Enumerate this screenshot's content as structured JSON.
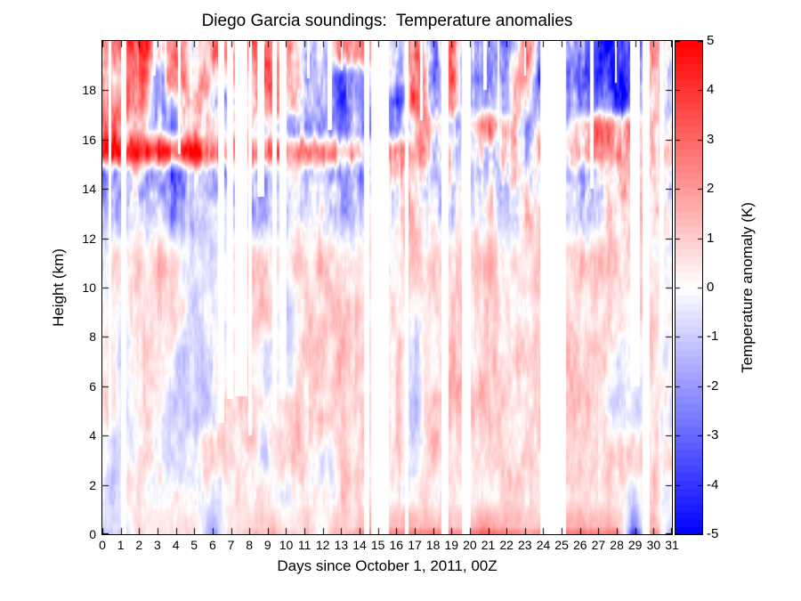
{
  "title": "Diego Garcia soundings:  Temperature anomalies",
  "background_color": "#ffffff",
  "chart_data": {
    "type": "heatmap",
    "title": "Diego Garcia soundings:  Temperature anomalies",
    "xlabel": "Days since October 1, 2011, 00Z",
    "ylabel": "Height (km)",
    "x_range": [
      0,
      31
    ],
    "y_range": [
      0,
      20
    ],
    "x_ticks": [
      0,
      1,
      2,
      3,
      4,
      5,
      6,
      7,
      8,
      9,
      10,
      11,
      12,
      13,
      14,
      15,
      16,
      17,
      18,
      19,
      20,
      21,
      22,
      23,
      24,
      25,
      26,
      27,
      28,
      29,
      30,
      31
    ],
    "y_ticks": [
      0,
      2,
      4,
      6,
      8,
      10,
      12,
      14,
      16,
      18
    ],
    "grid_on": false,
    "colorbar": {
      "label": "Temperature anomaly (K)",
      "min": -5,
      "max": 5,
      "ticks": [
        5,
        4,
        3,
        2,
        1,
        0,
        -1,
        -2,
        -3,
        -4,
        -5
      ],
      "levels": 64,
      "color_positive": "#ff0000",
      "color_zero": "#ffffff",
      "color_negative": "#0000ff"
    },
    "grid": {
      "days": [
        0,
        1,
        2,
        3,
        4,
        5,
        6,
        7,
        8,
        9,
        10,
        11,
        12,
        13,
        14,
        15,
        16,
        17,
        18,
        19,
        20,
        21,
        22,
        23,
        24,
        25,
        26,
        27,
        28,
        29,
        30,
        31
      ],
      "heights": [
        0,
        0.4,
        1.5,
        3,
        5,
        7,
        9,
        11,
        13,
        14.5,
        15.5,
        16.5,
        17.5,
        18.5,
        19.5
      ],
      "values": [
        [
          -1.0,
          -0.5,
          0.5,
          0.3,
          0.5,
          0.3,
          -1.5,
          0.8,
          1.2,
          1.2,
          1.0,
          1.0,
          0.3,
          1.2,
          2.2,
          2.5,
          2.5,
          2.4,
          2.4,
          2.5,
          2.6,
          2.5,
          2.6,
          2.5,
          2.3,
          2.5,
          2.6,
          2.6,
          2.5,
          -3.5,
          2.5,
          -1.5
        ],
        [
          -0.6,
          -0.3,
          0.4,
          0.2,
          0.3,
          0.2,
          -1.0,
          0.5,
          0.8,
          0.8,
          0.6,
          0.7,
          0.2,
          0.8,
          1.2,
          1.4,
          1.4,
          1.3,
          1.3,
          1.4,
          1.5,
          1.4,
          1.5,
          1.4,
          1.2,
          1.4,
          1.5,
          1.5,
          1.4,
          -2.0,
          1.4,
          -0.8
        ],
        [
          -0.4,
          -0.2,
          0.4,
          -0.3,
          0.3,
          -0.4,
          -0.6,
          0.4,
          0.5,
          0.4,
          -0.2,
          0.4,
          0.4,
          0.6,
          0.6,
          0.5,
          0.7,
          0.5,
          0.4,
          0.6,
          0.8,
          0.6,
          0.7,
          0.6,
          0.5,
          0.7,
          0.6,
          0.6,
          0.4,
          -1.0,
          0.5,
          -0.4
        ],
        [
          0.3,
          -0.5,
          0.6,
          0.4,
          -0.6,
          -0.4,
          0.5,
          0.8,
          0.6,
          -0.5,
          0.9,
          1.0,
          -0.8,
          0.7,
          0.9,
          0.5,
          0.6,
          -0.5,
          0.8,
          0.6,
          0.9,
          1.1,
          0.8,
          0.6,
          0.7,
          0.9,
          1.0,
          0.8,
          0.6,
          0.5,
          0.9,
          0.6
        ],
        [
          0.4,
          -0.4,
          0.5,
          0.3,
          -0.9,
          -1.1,
          -0.6,
          0.6,
          0.9,
          0.4,
          0.8,
          1.3,
          1.1,
          0.8,
          0.9,
          0.6,
          0.5,
          -1.2,
          0.7,
          0.8,
          1.0,
          1.3,
          0.9,
          0.7,
          0.8,
          0.6,
          0.9,
          0.7,
          -0.8,
          -0.6,
          0.8,
          -0.7
        ],
        [
          0.3,
          -0.6,
          0.4,
          0.6,
          -0.7,
          -0.9,
          -0.5,
          0.5,
          0.8,
          -0.6,
          -0.9,
          0.9,
          0.7,
          0.9,
          0.6,
          0.5,
          0.7,
          -0.8,
          0.5,
          0.9,
          0.8,
          1.0,
          0.7,
          0.9,
          0.6,
          0.8,
          0.7,
          0.9,
          -0.6,
          0.4,
          0.6,
          -0.5
        ],
        [
          0.2,
          0.4,
          0.8,
          0.9,
          0.6,
          -0.5,
          -0.7,
          0.4,
          0.8,
          0.9,
          -0.6,
          0.8,
          1.0,
          0.9,
          0.7,
          0.4,
          0.6,
          0.5,
          0.8,
          0.6,
          0.9,
          0.7,
          0.8,
          0.6,
          0.5,
          0.7,
          0.9,
          0.6,
          0.4,
          0.8,
          0.5,
          0.3
        ],
        [
          0.3,
          0.5,
          0.9,
          1.0,
          0.7,
          -0.4,
          -0.6,
          0.5,
          0.7,
          0.8,
          0.6,
          0.9,
          0.8,
          0.7,
          0.5,
          0.3,
          0.5,
          0.7,
          0.6,
          0.4,
          0.7,
          0.9,
          0.6,
          0.8,
          0.4,
          0.6,
          0.8,
          0.9,
          0.7,
          0.6,
          0.4,
          0.2
        ],
        [
          -1.2,
          -1.5,
          -1.0,
          -1.3,
          -1.6,
          -1.2,
          -1.4,
          -1.0,
          -1.3,
          -1.1,
          -0.8,
          -1.0,
          -0.7,
          -0.9,
          -0.5,
          0.3,
          0.4,
          0.6,
          -0.4,
          -0.6,
          0.5,
          0.4,
          -0.5,
          0.6,
          0.3,
          -1.0,
          -1.5,
          -0.8,
          0.8,
          1.2,
          0.4,
          -1.0
        ],
        [
          -1.8,
          -2.0,
          -1.6,
          -1.9,
          -2.1,
          -1.7,
          -1.5,
          -1.2,
          -1.0,
          -1.4,
          -1.1,
          -0.9,
          -1.2,
          -0.8,
          -0.6,
          0.5,
          0.8,
          1.0,
          -0.5,
          -0.8,
          0.4,
          0.6,
          -0.4,
          0.5,
          0.2,
          -0.8,
          -1.8,
          -0.5,
          1.0,
          1.5,
          0.8,
          -0.8
        ],
        [
          4.5,
          4.8,
          4.5,
          4.2,
          4.6,
          4.4,
          3.5,
          2.0,
          2.5,
          2.8,
          2.5,
          2.2,
          2.8,
          2.4,
          1.5,
          2.0,
          2.0,
          2.5,
          -0.5,
          -0.5,
          0.3,
          -0.4,
          0.4,
          0.3,
          0.5,
          1.0,
          1.5,
          2.5,
          2.0,
          1.5,
          1.0,
          2.0
        ],
        [
          2.0,
          2.2,
          1.5,
          -1.5,
          -1.2,
          1.0,
          2.0,
          -1.0,
          1.0,
          -0.8,
          -1.5,
          -1.8,
          -1.5,
          -1.2,
          -0.8,
          -1.0,
          -2.5,
          1.0,
          1.5,
          -1.5,
          0.5,
          1.8,
          1.0,
          -0.5,
          -1.0,
          0.5,
          2.0,
          2.5,
          2.2,
          2.0,
          1.0,
          1.5
        ],
        [
          1.5,
          2.5,
          3.0,
          -1.5,
          -1.0,
          2.0,
          -0.5,
          -1.0,
          1.5,
          1.2,
          2.0,
          -1.0,
          -1.5,
          -2.0,
          -2.0,
          -1.0,
          -3.0,
          3.0,
          -1.0,
          2.5,
          -2.0,
          -2.0,
          -1.5,
          1.5,
          -2.0,
          -1.0,
          -1.5,
          -2.5,
          -3.0,
          -2.5,
          0.5,
          -1.0
        ],
        [
          1.0,
          1.5,
          3.5,
          -1.0,
          2.5,
          1.5,
          1.0,
          1.5,
          2.0,
          2.5,
          2.8,
          -1.0,
          -2.0,
          -2.0,
          -2.5,
          1.0,
          -1.0,
          2.5,
          -2.0,
          3.0,
          -2.5,
          -3.0,
          -2.0,
          3.0,
          -3.5,
          -1.5,
          -2.5,
          -3.5,
          -3.8,
          -3.0,
          1.5,
          -1.5
        ],
        [
          2.0,
          2.5,
          3.0,
          1.5,
          2.0,
          1.5,
          2.0,
          2.5,
          2.5,
          2.5,
          2.0,
          -0.5,
          -0.5,
          2.0,
          2.0,
          2.0,
          -0.5,
          3.0,
          -1.5,
          3.2,
          -2.0,
          -2.5,
          -1.5,
          2.5,
          -3.0,
          -1.0,
          -2.0,
          -3.5,
          -4.2,
          -3.5,
          2.5,
          0.5
        ]
      ]
    },
    "missing": [
      [
        0.36,
        0.5,
        4.0
      ],
      [
        1.0,
        1.3,
        0
      ],
      [
        2.78,
        2.9,
        18.6
      ],
      [
        3.38,
        3.48,
        18.9
      ],
      [
        4.1,
        4.28,
        15.4
      ],
      [
        6.3,
        6.65,
        4.5
      ],
      [
        6.8,
        7.1,
        5.5
      ],
      [
        7.2,
        7.9,
        5.6
      ],
      [
        7.95,
        8.15,
        4.0
      ],
      [
        8.45,
        8.8,
        13.7
      ],
      [
        9.25,
        9.5,
        4.5
      ],
      [
        9.65,
        10.05,
        5.8
      ],
      [
        11.15,
        11.3,
        18.5
      ],
      [
        12.25,
        12.5,
        16.4
      ],
      [
        13.0,
        13.1,
        18.8
      ],
      [
        14.25,
        14.55,
        0
      ],
      [
        14.62,
        15.62,
        0
      ],
      [
        16.45,
        16.65,
        0
      ],
      [
        17.3,
        17.45,
        16.8
      ],
      [
        18.45,
        18.85,
        0
      ],
      [
        19.55,
        20.05,
        0
      ],
      [
        20.75,
        20.92,
        18.0
      ],
      [
        21.5,
        21.62,
        15.9
      ],
      [
        22.95,
        23.05,
        18.6
      ],
      [
        23.85,
        25.25,
        0
      ],
      [
        26.55,
        26.75,
        14.0
      ],
      [
        27.9,
        28.0,
        18.3
      ],
      [
        28.72,
        29.25,
        6.0
      ],
      [
        29.4,
        29.8,
        0
      ],
      [
        30.3,
        30.55,
        8.0
      ]
    ],
    "noise": {
      "amp_low": 0.45,
      "amp_high": 1.0,
      "ramp_start": 11.5,
      "ramp_end": 14.5,
      "octaves": [
        {
          "fx": 1.6,
          "fy": 0.55,
          "amp": 1.3,
          "qx": 0
        },
        {
          "fx": 4.5,
          "fy": 1.3,
          "amp": 0.85,
          "qx": 0
        },
        {
          "fx": 9.0,
          "fy": 0.45,
          "amp": 0.75,
          "qx": 4
        },
        {
          "fx": 16.0,
          "fy": 3.2,
          "amp": 0.5,
          "qx": 8
        }
      ]
    }
  }
}
